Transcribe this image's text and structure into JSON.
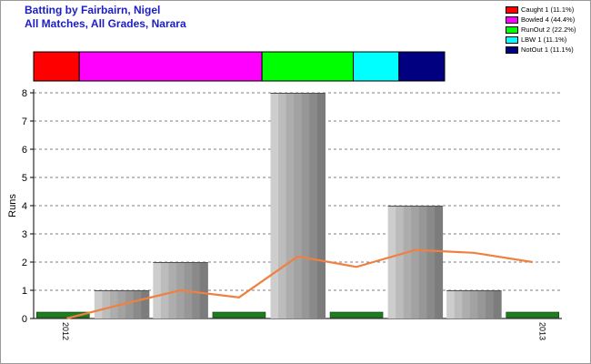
{
  "title": {
    "line1": "Batting by Fairbairn, Nigel",
    "line2": "All Matches, All Grades, Narara"
  },
  "legend": [
    {
      "label": "Caught 1 (11.1%)",
      "color": "#ff0000"
    },
    {
      "label": "Bowled 4 (44.4%)",
      "color": "#ff00ff"
    },
    {
      "label": "RunOut 2 (22.2%)",
      "color": "#00ff00"
    },
    {
      "label": "LBW 1 (11.1%)",
      "color": "#00ffff"
    },
    {
      "label": "NotOut 1 (11.1%)",
      "color": "#000080"
    }
  ],
  "chart_data": {
    "type": "bar",
    "ylabel": "Runs",
    "ylim": [
      0,
      8
    ],
    "yticks": [
      0,
      1,
      2,
      3,
      4,
      5,
      6,
      7,
      8
    ],
    "grid": true,
    "x_tick_labels": [
      "2012",
      "2013"
    ],
    "series": [
      {
        "values": [
          0,
          1,
          2,
          0,
          8,
          0,
          4,
          1,
          0
        ],
        "dismissal_colors": [
          "#ff0000",
          "#ff00ff",
          "#ff00ff",
          "#00ff00",
          "#ff00ff",
          "#00ff00",
          "#ff00ff",
          "#00ffff",
          "#000080"
        ],
        "zero_marker_color": "#1e7d1e"
      },
      {
        "type": "line",
        "values": [
          0,
          0.5,
          1.0,
          0.75,
          2.2,
          1.83,
          2.43,
          2.33,
          2.0
        ],
        "color": "#f08040"
      }
    ],
    "dismissal_bar": [
      {
        "label": "Caught",
        "count": 1,
        "color": "#ff0000"
      },
      {
        "label": "Bowled",
        "count": 4,
        "color": "#ff00ff"
      },
      {
        "label": "RunOut",
        "count": 2,
        "color": "#00ff00"
      },
      {
        "label": "LBW",
        "count": 1,
        "color": "#00ffff"
      },
      {
        "label": "NotOut",
        "count": 1,
        "color": "#000080"
      }
    ]
  }
}
